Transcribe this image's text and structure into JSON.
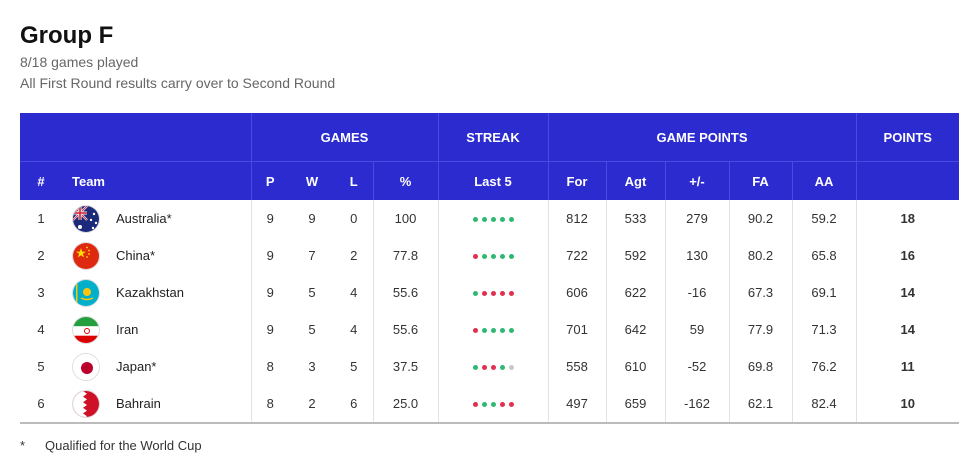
{
  "header": {
    "title": "Group F",
    "games_played": "8/18 games played",
    "note": "All First Round results carry over to Second Round"
  },
  "table": {
    "group_headers": {
      "games": "GAMES",
      "streak": "STREAK",
      "game_points": "GAME POINTS",
      "points": "POINTS"
    },
    "columns": {
      "rank": "#",
      "team": "Team",
      "p": "P",
      "w": "W",
      "l": "L",
      "pct": "%",
      "last5": "Last 5",
      "for": "For",
      "agt": "Agt",
      "diff": "+/-",
      "fa": "FA",
      "aa": "AA",
      "pts": ""
    },
    "rows": [
      {
        "rank": "1",
        "team": "Australia*",
        "flag": "australia-flag-icon",
        "p": "9",
        "w": "9",
        "l": "0",
        "pct": "100",
        "streak": [
          "W",
          "W",
          "W",
          "W",
          "W"
        ],
        "for": "812",
        "agt": "533",
        "diff": "279",
        "fa": "90.2",
        "aa": "59.2",
        "pts": "18"
      },
      {
        "rank": "2",
        "team": "China*",
        "flag": "china-flag-icon",
        "p": "9",
        "w": "7",
        "l": "2",
        "pct": "77.8",
        "streak": [
          "L",
          "W",
          "W",
          "W",
          "W"
        ],
        "for": "722",
        "agt": "592",
        "diff": "130",
        "fa": "80.2",
        "aa": "65.8",
        "pts": "16"
      },
      {
        "rank": "3",
        "team": "Kazakhstan",
        "flag": "kazakhstan-flag-icon",
        "p": "9",
        "w": "5",
        "l": "4",
        "pct": "55.6",
        "streak": [
          "W",
          "L",
          "L",
          "L",
          "L"
        ],
        "for": "606",
        "agt": "622",
        "diff": "-16",
        "fa": "67.3",
        "aa": "69.1",
        "pts": "14"
      },
      {
        "rank": "4",
        "team": "Iran",
        "flag": "iran-flag-icon",
        "p": "9",
        "w": "5",
        "l": "4",
        "pct": "55.6",
        "streak": [
          "L",
          "W",
          "W",
          "W",
          "W"
        ],
        "for": "701",
        "agt": "642",
        "diff": "59",
        "fa": "77.9",
        "aa": "71.3",
        "pts": "14"
      },
      {
        "rank": "5",
        "team": "Japan*",
        "flag": "japan-flag-icon",
        "p": "8",
        "w": "3",
        "l": "5",
        "pct": "37.5",
        "streak": [
          "W",
          "L",
          "L",
          "W",
          "N"
        ],
        "for": "558",
        "agt": "610",
        "diff": "-52",
        "fa": "69.8",
        "aa": "76.2",
        "pts": "11"
      },
      {
        "rank": "6",
        "team": "Bahrain",
        "flag": "bahrain-flag-icon",
        "p": "8",
        "w": "2",
        "l": "6",
        "pct": "25.0",
        "streak": [
          "L",
          "W",
          "W",
          "L",
          "L"
        ],
        "for": "497",
        "agt": "659",
        "diff": "-162",
        "fa": "62.1",
        "aa": "82.4",
        "pts": "10"
      }
    ]
  },
  "footnote": {
    "symbol": "*",
    "text": "Qualified for the World Cup"
  },
  "colors": {
    "header_bg": "#2b2bd0",
    "win": "#2eb872",
    "loss": "#e0304e",
    "none": "#c8c8c8"
  }
}
